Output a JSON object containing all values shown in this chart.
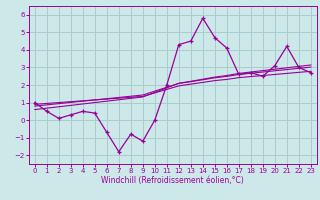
{
  "x": [
    0,
    1,
    2,
    3,
    4,
    5,
    6,
    7,
    8,
    9,
    10,
    11,
    12,
    13,
    14,
    15,
    16,
    17,
    18,
    19,
    20,
    21,
    22,
    23
  ],
  "y_main": [
    1.0,
    0.5,
    0.1,
    0.3,
    0.5,
    0.4,
    -0.7,
    -1.8,
    -0.8,
    -1.2,
    0.0,
    2.0,
    4.3,
    4.5,
    5.8,
    4.7,
    4.1,
    2.6,
    2.7,
    2.5,
    3.1,
    4.2,
    3.0,
    2.7
  ],
  "y_reg1": [
    0.9,
    0.95,
    1.0,
    1.05,
    1.1,
    1.15,
    1.2,
    1.25,
    1.3,
    1.35,
    1.55,
    1.75,
    1.95,
    2.05,
    2.15,
    2.25,
    2.32,
    2.42,
    2.48,
    2.54,
    2.6,
    2.66,
    2.72,
    2.78
  ],
  "y_reg2": [
    0.8,
    0.87,
    0.94,
    1.01,
    1.08,
    1.15,
    1.22,
    1.29,
    1.36,
    1.43,
    1.65,
    1.87,
    2.09,
    2.19,
    2.3,
    2.41,
    2.49,
    2.6,
    2.67,
    2.74,
    2.81,
    2.88,
    2.95,
    3.02
  ],
  "y_reg3": [
    0.6,
    0.68,
    0.76,
    0.84,
    0.92,
    1.0,
    1.08,
    1.16,
    1.24,
    1.32,
    1.58,
    1.84,
    2.1,
    2.21,
    2.33,
    2.45,
    2.54,
    2.66,
    2.74,
    2.82,
    2.9,
    2.98,
    3.06,
    3.14
  ],
  "line_color": "#990099",
  "bg_color": "#cce8e8",
  "grid_color": "#aacccc",
  "xlabel": "Windchill (Refroidissement éolien,°C)",
  "ylim": [
    -2.5,
    6.5
  ],
  "xlim": [
    -0.5,
    23.5
  ],
  "yticks": [
    -2,
    -1,
    0,
    1,
    2,
    3,
    4,
    5,
    6
  ],
  "xticks": [
    0,
    1,
    2,
    3,
    4,
    5,
    6,
    7,
    8,
    9,
    10,
    11,
    12,
    13,
    14,
    15,
    16,
    17,
    18,
    19,
    20,
    21,
    22,
    23
  ],
  "tick_fontsize": 5.0,
  "xlabel_fontsize": 5.5
}
